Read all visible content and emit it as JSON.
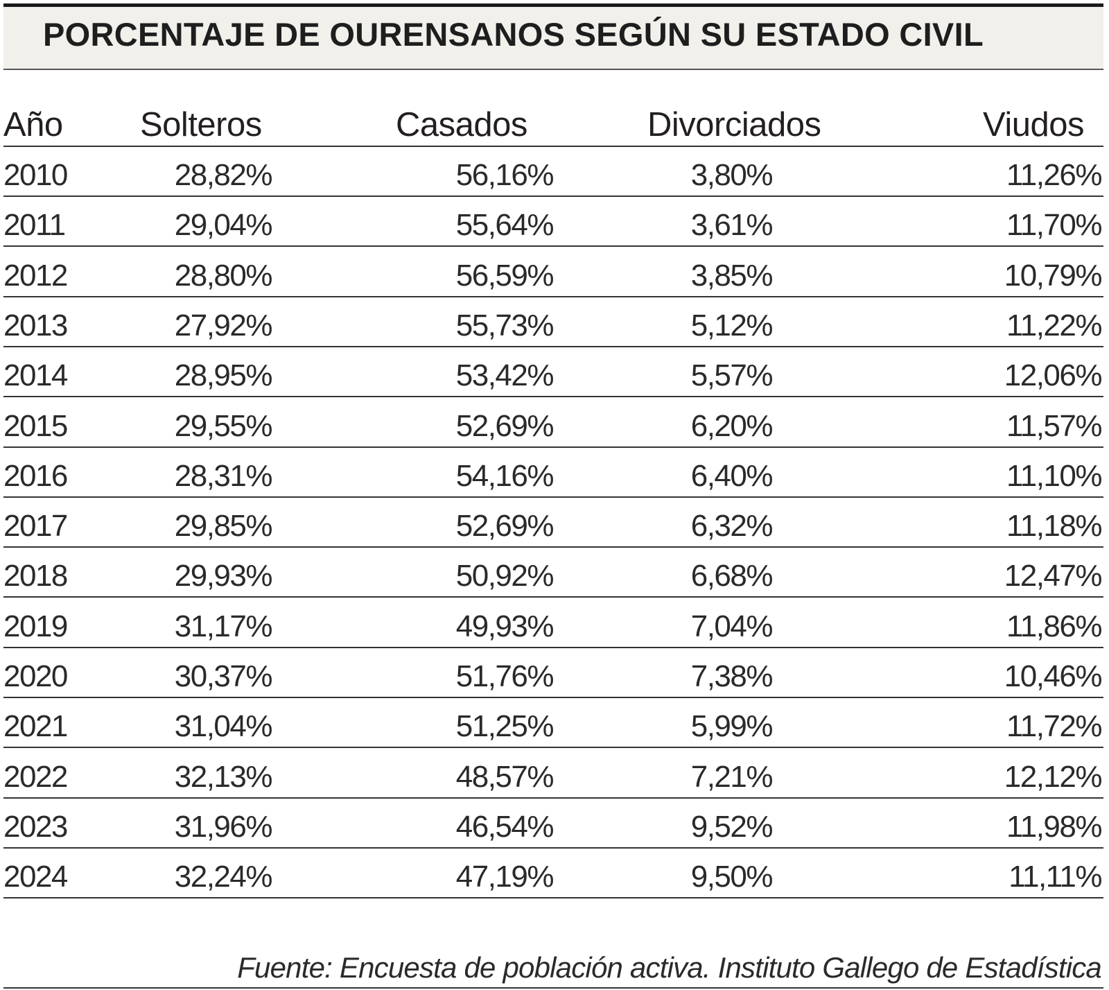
{
  "title": "PORCENTAJE DE OURENSANOS SEGÚN SU ESTADO CIVIL",
  "columns": [
    "Año",
    "Solteros",
    "Casados",
    "Divorciados",
    "Viudos"
  ],
  "rows": [
    [
      "2010",
      "28,82%",
      "56,16%",
      "3,80%",
      "11,26%"
    ],
    [
      "2011",
      "29,04%",
      "55,64%",
      "3,61%",
      "11,70%"
    ],
    [
      "2012",
      "28,80%",
      "56,59%",
      "3,85%",
      "10,79%"
    ],
    [
      "2013",
      "27,92%",
      "55,73%",
      "5,12%",
      "11,22%"
    ],
    [
      "2014",
      "28,95%",
      "53,42%",
      "5,57%",
      "12,06%"
    ],
    [
      "2015",
      "29,55%",
      "52,69%",
      "6,20%",
      "11,57%"
    ],
    [
      "2016",
      "28,31%",
      "54,16%",
      "6,40%",
      "11,10%"
    ],
    [
      "2017",
      "29,85%",
      "52,69%",
      "6,32%",
      "11,18%"
    ],
    [
      "2018",
      "29,93%",
      "50,92%",
      "6,68%",
      "12,47%"
    ],
    [
      "2019",
      "31,17%",
      "49,93%",
      "7,04%",
      "11,86%"
    ],
    [
      "2020",
      "30,37%",
      "51,76%",
      "7,38%",
      "10,46%"
    ],
    [
      "2021",
      "31,04%",
      "51,25%",
      "5,99%",
      "11,72%"
    ],
    [
      "2022",
      "32,13%",
      "48,57%",
      "7,21%",
      "12,12%"
    ],
    [
      "2023",
      "31,96%",
      "46,54%",
      "9,52%",
      "11,98%"
    ],
    [
      "2024",
      "32,24%",
      "47,19%",
      "9,50%",
      "11,11%"
    ]
  ],
  "source": "Fuente: Encuesta de población activa. Instituto Gallego de Estadística",
  "colors": {
    "title_background": "#f1f0eb",
    "text": "#231f20"
  }
}
